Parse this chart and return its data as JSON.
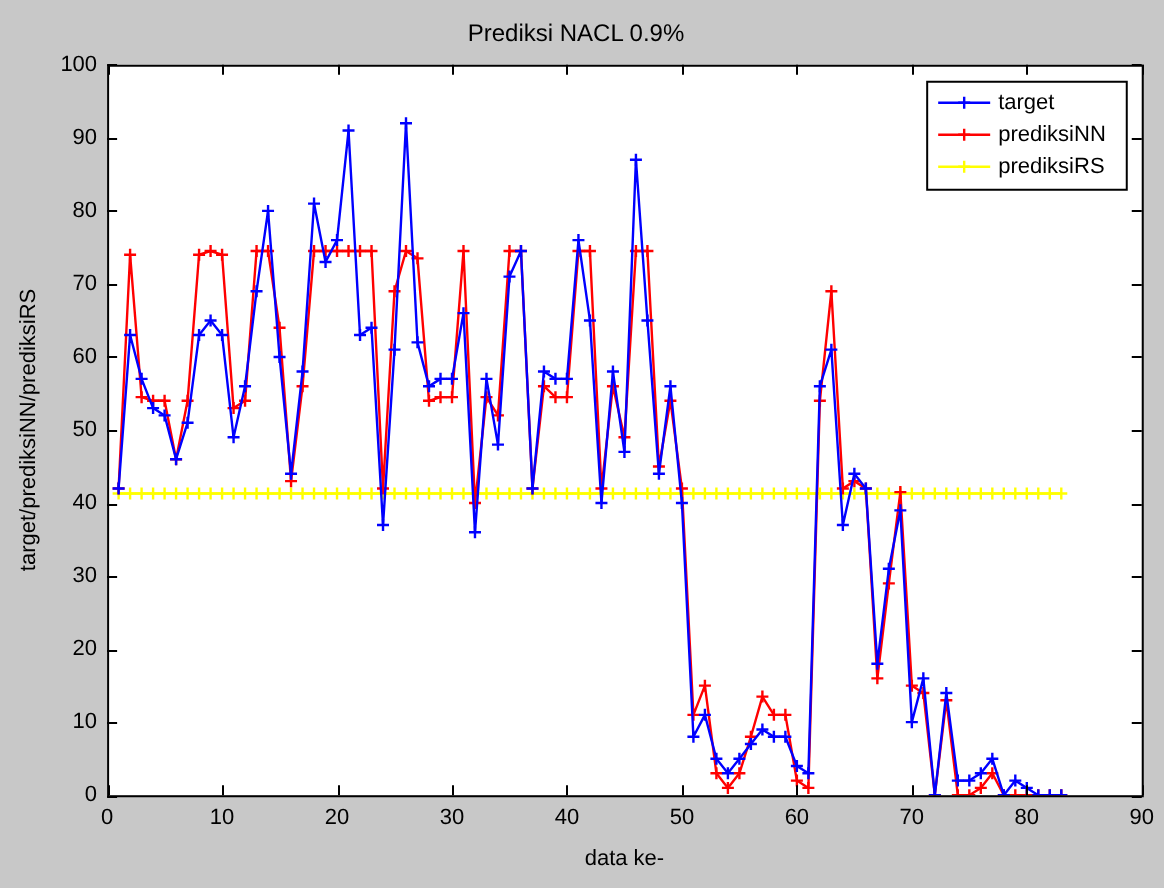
{
  "chart_data": {
    "type": "line",
    "title": "Prediksi NACL 0.9%",
    "xlabel": "data ke-",
    "ylabel": "target/prediksiNN/prediksiRS",
    "x": [
      1,
      2,
      3,
      4,
      5,
      6,
      7,
      8,
      9,
      10,
      11,
      12,
      13,
      14,
      15,
      16,
      17,
      18,
      19,
      20,
      21,
      22,
      23,
      24,
      25,
      26,
      27,
      28,
      29,
      30,
      31,
      32,
      33,
      34,
      35,
      36,
      37,
      38,
      39,
      40,
      41,
      42,
      43,
      44,
      45,
      46,
      47,
      48,
      49,
      50,
      51,
      52,
      53,
      54,
      55,
      56,
      57,
      58,
      59,
      60,
      61,
      62,
      63,
      64,
      65,
      66,
      67,
      68,
      69,
      70,
      71,
      72,
      73,
      74,
      75,
      76,
      77,
      78,
      79,
      80,
      81,
      82,
      83
    ],
    "series": [
      {
        "name": "target",
        "color": "#0000ff",
        "values": [
          42,
          63,
          57,
          53,
          52,
          46,
          51,
          63,
          65,
          63,
          49,
          56,
          69,
          80,
          60,
          44,
          58,
          81,
          73,
          76,
          91,
          63,
          64,
          37,
          61,
          92,
          62,
          56,
          57,
          57,
          66,
          36,
          57,
          48,
          71,
          74.5,
          42,
          58,
          57,
          57,
          76,
          65,
          40,
          58,
          47,
          87,
          65,
          44,
          56,
          40,
          8,
          11,
          5,
          3,
          5,
          7,
          9,
          8,
          8,
          4,
          3,
          56,
          61,
          37,
          44,
          42,
          18,
          31,
          39,
          10,
          16,
          0,
          14,
          2,
          2,
          3,
          5,
          0,
          2,
          1,
          0,
          0,
          0
        ]
      },
      {
        "name": "prediksiNN",
        "color": "#ff0000",
        "values": [
          42,
          74,
          54.5,
          54,
          54,
          46,
          54,
          74,
          74.5,
          74,
          53,
          54,
          74.5,
          74.5,
          64,
          43,
          56,
          74.5,
          74.5,
          74.5,
          74.5,
          74.5,
          74.5,
          42,
          69,
          74.5,
          73.5,
          54,
          54.5,
          54.5,
          74.5,
          40,
          54.5,
          52,
          74.5,
          74.5,
          42,
          56,
          54.5,
          54.5,
          74.5,
          74.5,
          42,
          56,
          49,
          74.5,
          74.5,
          45,
          54,
          42,
          11,
          15,
          3,
          1,
          3,
          8,
          13.5,
          11,
          11,
          2,
          1,
          54,
          69,
          42,
          43,
          42,
          16,
          29,
          41.5,
          15,
          14,
          0,
          13,
          0,
          0,
          1,
          3,
          0,
          0,
          0,
          0,
          0,
          0
        ]
      },
      {
        "name": "prediksiRS",
        "color": "#ffff00",
        "values": [
          41.3,
          41.3,
          41.3,
          41.3,
          41.3,
          41.3,
          41.3,
          41.3,
          41.3,
          41.3,
          41.3,
          41.3,
          41.3,
          41.3,
          41.3,
          41.3,
          41.3,
          41.3,
          41.3,
          41.3,
          41.3,
          41.3,
          41.3,
          41.3,
          41.3,
          41.3,
          41.3,
          41.3,
          41.3,
          41.3,
          41.3,
          41.3,
          41.3,
          41.3,
          41.3,
          41.3,
          41.3,
          41.3,
          41.3,
          41.3,
          41.3,
          41.3,
          41.3,
          41.3,
          41.3,
          41.3,
          41.3,
          41.3,
          41.3,
          41.3,
          41.3,
          41.3,
          41.3,
          41.3,
          41.3,
          41.3,
          41.3,
          41.3,
          41.3,
          41.3,
          41.3,
          41.3,
          41.3,
          41.3,
          41.3,
          41.3,
          41.3,
          41.3,
          41.3,
          41.3,
          41.3,
          41.3,
          41.3,
          41.3,
          41.3,
          41.3,
          41.3,
          41.3,
          41.3,
          41.3,
          41.3,
          41.3,
          41.3
        ]
      }
    ],
    "xlim": [
      0,
      90
    ],
    "xticks": [
      0,
      10,
      20,
      30,
      40,
      50,
      60,
      70,
      80,
      90
    ],
    "ylim": [
      0,
      100
    ],
    "yticks": [
      0,
      10,
      20,
      30,
      40,
      50,
      60,
      70,
      80,
      90,
      100
    ],
    "grid": false,
    "legend": "top right",
    "marker": "cross",
    "line_style": "solid"
  }
}
